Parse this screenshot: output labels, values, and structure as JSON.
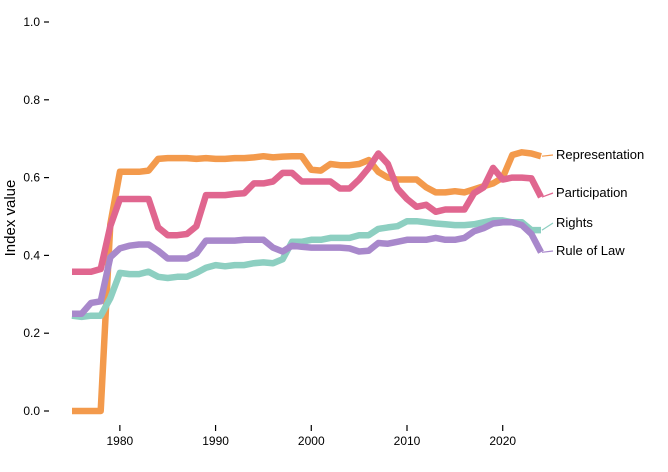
{
  "chart_data": {
    "type": "line",
    "title": "",
    "xlabel": "",
    "ylabel": "Index value",
    "xlim": [
      1975,
      2024
    ],
    "ylim": [
      0,
      1
    ],
    "x_ticks": [
      1980,
      1990,
      2000,
      2010,
      2020
    ],
    "y_ticks": [
      "0.0",
      "0.2",
      "0.4",
      "0.6",
      "0.8",
      "1.0"
    ],
    "grid": false,
    "legend": "direct labels at right end of lines",
    "x": [
      1975,
      1976,
      1977,
      1978,
      1979,
      1980,
      1981,
      1982,
      1983,
      1984,
      1985,
      1986,
      1987,
      1988,
      1989,
      1990,
      1991,
      1992,
      1993,
      1994,
      1995,
      1996,
      1997,
      1998,
      1999,
      2000,
      2001,
      2002,
      2003,
      2004,
      2005,
      2006,
      2007,
      2008,
      2009,
      2010,
      2011,
      2012,
      2013,
      2014,
      2015,
      2016,
      2017,
      2018,
      2019,
      2020,
      2021,
      2022,
      2023,
      2024
    ],
    "series": [
      {
        "name": "Representation",
        "color": "#F39A4C",
        "values": [
          0.0,
          0.0,
          0.0,
          0.0,
          0.48,
          0.615,
          0.615,
          0.615,
          0.618,
          0.648,
          0.65,
          0.65,
          0.65,
          0.648,
          0.65,
          0.648,
          0.648,
          0.65,
          0.65,
          0.652,
          0.655,
          0.652,
          0.654,
          0.655,
          0.655,
          0.62,
          0.618,
          0.635,
          0.632,
          0.632,
          0.635,
          0.645,
          0.615,
          0.6,
          0.595,
          0.595,
          0.595,
          0.575,
          0.562,
          0.562,
          0.565,
          0.562,
          0.57,
          0.578,
          0.585,
          0.6,
          0.658,
          0.665,
          0.662,
          0.655
        ]
      },
      {
        "name": "Participation",
        "color": "#E0668F",
        "values": [
          0.358,
          0.358,
          0.358,
          0.365,
          0.475,
          0.545,
          0.545,
          0.545,
          0.545,
          0.472,
          0.452,
          0.452,
          0.455,
          0.475,
          0.555,
          0.555,
          0.555,
          0.558,
          0.56,
          0.585,
          0.585,
          0.59,
          0.612,
          0.612,
          0.59,
          0.59,
          0.59,
          0.59,
          0.572,
          0.572,
          0.595,
          0.625,
          0.662,
          0.635,
          0.572,
          0.545,
          0.525,
          0.53,
          0.512,
          0.518,
          0.518,
          0.518,
          0.56,
          0.575,
          0.625,
          0.595,
          0.6,
          0.6,
          0.598,
          0.55
        ]
      },
      {
        "name": "Rights",
        "color": "#8DCFC1",
        "values": [
          0.245,
          0.242,
          0.245,
          0.245,
          0.29,
          0.355,
          0.352,
          0.352,
          0.358,
          0.345,
          0.342,
          0.345,
          0.345,
          0.355,
          0.368,
          0.375,
          0.372,
          0.375,
          0.375,
          0.38,
          0.382,
          0.38,
          0.39,
          0.435,
          0.435,
          0.44,
          0.44,
          0.445,
          0.445,
          0.445,
          0.452,
          0.452,
          0.468,
          0.472,
          0.475,
          0.488,
          0.488,
          0.485,
          0.482,
          0.48,
          0.478,
          0.478,
          0.48,
          0.485,
          0.49,
          0.49,
          0.485,
          0.485,
          0.465,
          0.465
        ]
      },
      {
        "name": "Rule of Law",
        "color": "#A888CB",
        "values": [
          0.25,
          0.25,
          0.278,
          0.282,
          0.395,
          0.418,
          0.425,
          0.428,
          0.428,
          0.412,
          0.392,
          0.392,
          0.392,
          0.405,
          0.438,
          0.438,
          0.438,
          0.438,
          0.44,
          0.44,
          0.44,
          0.42,
          0.41,
          0.425,
          0.422,
          0.42,
          0.42,
          0.42,
          0.42,
          0.418,
          0.41,
          0.412,
          0.432,
          0.43,
          0.435,
          0.44,
          0.44,
          0.44,
          0.445,
          0.44,
          0.44,
          0.445,
          0.462,
          0.47,
          0.482,
          0.485,
          0.485,
          0.478,
          0.455,
          0.408
        ]
      }
    ]
  }
}
